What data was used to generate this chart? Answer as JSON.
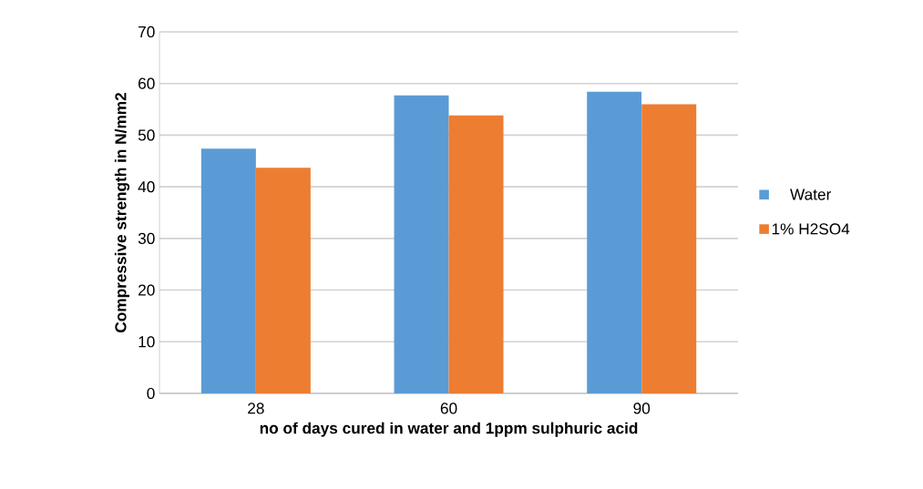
{
  "chart_data": {
    "type": "bar",
    "xlabel": "no of days cured in water and 1ppm sulphuric acid",
    "ylabel": "Compressive strength in N/mm2",
    "categories": [
      "28",
      "60",
      "90"
    ],
    "series": [
      {
        "name": "Water",
        "color": "#5b9bd5",
        "values": [
          47.4,
          57.7,
          58.4
        ]
      },
      {
        "name": "1% H2SO4",
        "color": "#ed7d31",
        "values": [
          43.7,
          53.8,
          56.0
        ]
      }
    ],
    "ylim": [
      0,
      70
    ],
    "yticks": [
      0,
      10,
      20,
      30,
      40,
      50,
      60,
      70
    ],
    "grid": "y",
    "legend": "right"
  }
}
